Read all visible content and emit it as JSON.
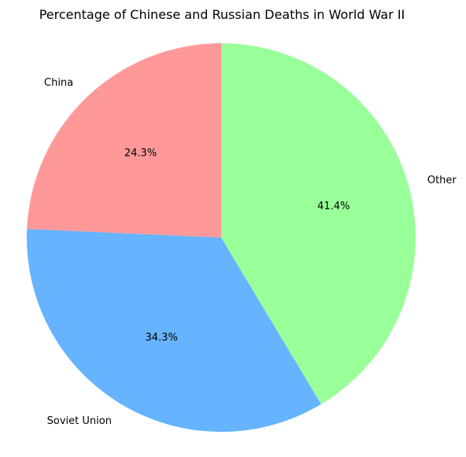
{
  "chart_data": {
    "type": "pie",
    "title": "Percentage of Chinese and Russian Deaths in World War II",
    "slices": [
      {
        "label": "China",
        "percent": 24.3,
        "percent_label": "24.3%",
        "color": "#ff9999"
      },
      {
        "label": "Soviet Union",
        "percent": 34.3,
        "percent_label": "34.3%",
        "color": "#66b3ff"
      },
      {
        "label": "Other",
        "percent": 41.4,
        "percent_label": "41.4%",
        "color": "#99ff99"
      }
    ],
    "start_angle_deg": 90,
    "direction": "counterclockwise",
    "legend": "none"
  }
}
